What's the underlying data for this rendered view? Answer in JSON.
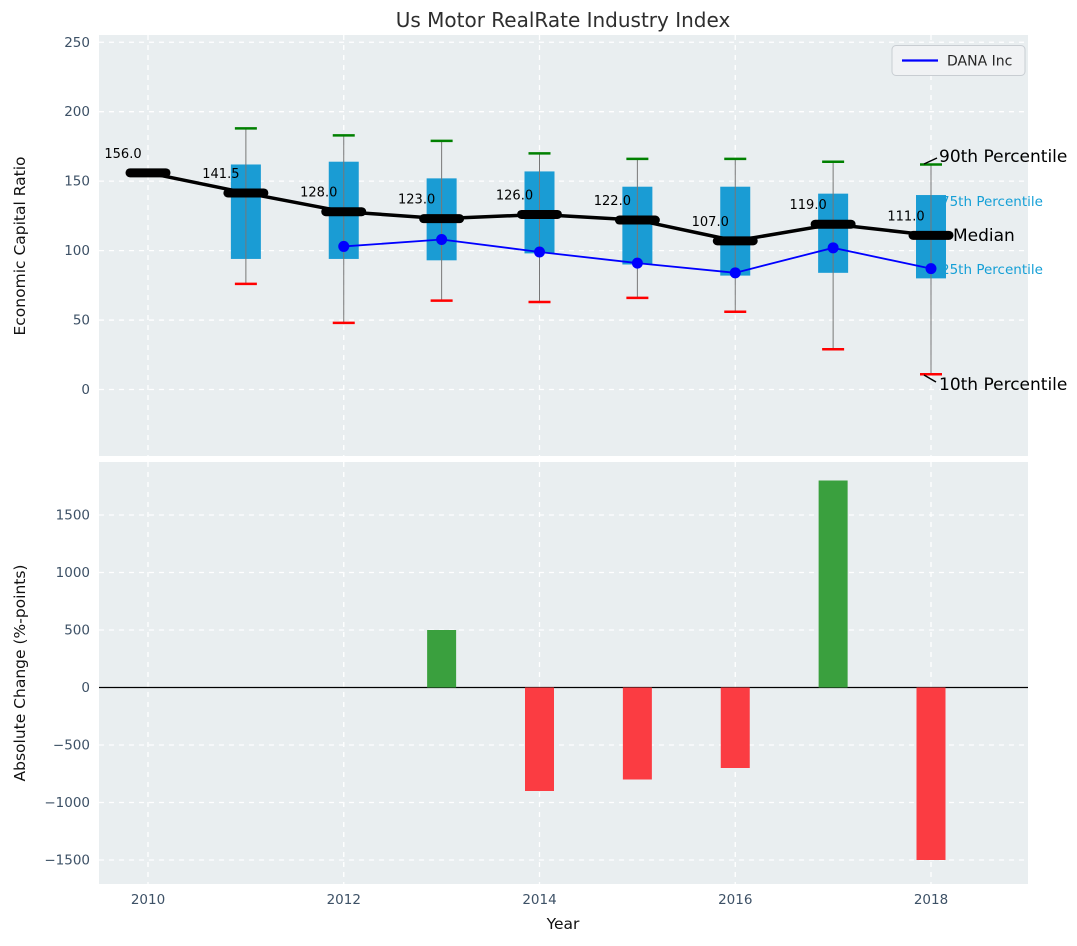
{
  "title": "Us Motor RealRate Industry Index",
  "legend": {
    "label": "DANA Inc"
  },
  "axes": {
    "top_ylabel": "Economic Capital Ratio",
    "bottom_ylabel": "Absolute Change (%-points)",
    "xlabel": "Year"
  },
  "annotations": {
    "p90": "90th Percentile",
    "p75": "75th Percentile",
    "median": "Median",
    "p25": "25th Percentile",
    "p10": "10th Percentile"
  },
  "colors": {
    "box": "#1a9cd4",
    "whisker": "#777777",
    "cap_high": "#008000",
    "cap_low": "#ff0000",
    "median": "#000000",
    "dana_line": "#0000ff",
    "bar_positive": "#3aa03e",
    "bar_negative": "#fb3c42",
    "plot_bg": "#e9eef0",
    "grid": "#ffffff",
    "tick_label": "#3d5166",
    "annotation_cyan": "#149fd6",
    "annotation_black": "#000000",
    "zero_line": "#000000"
  },
  "chart_data": [
    {
      "type": "boxplot-percentile-line",
      "title": "Us Motor RealRate Industry Index",
      "ylabel": "Economic Capital Ratio",
      "grid": true,
      "legend_position": "upper right",
      "x": [
        2010,
        2011,
        2012,
        2013,
        2014,
        2015,
        2016,
        2017,
        2018
      ],
      "yticks": [
        0,
        50,
        100,
        150,
        200,
        250
      ],
      "ytick_labels": [
        "0",
        "50",
        "100",
        "150",
        "200",
        "250"
      ],
      "ylim": [
        -47,
        255
      ],
      "median": [
        156,
        141.5,
        128,
        123,
        126,
        122,
        107,
        119,
        111
      ],
      "median_labels": [
        "156.0",
        "141.5",
        "128.0",
        "123.0",
        "126.0",
        "122.0",
        "107.0",
        "119.0",
        "111.0"
      ],
      "p90": [
        null,
        188,
        183,
        179,
        170,
        166,
        166,
        164,
        162
      ],
      "p75": [
        null,
        162,
        164,
        152,
        157,
        146,
        146,
        141,
        140
      ],
      "p25": [
        null,
        94,
        94,
        93,
        98,
        90,
        82,
        84,
        80
      ],
      "p10": [
        null,
        76,
        48,
        64,
        63,
        66,
        56,
        29,
        11
      ],
      "series": [
        {
          "name": "DANA Inc",
          "x": [
            2012,
            2013,
            2014,
            2015,
            2016,
            2017,
            2018
          ],
          "values": [
            103,
            108,
            99,
            91,
            84,
            102,
            87
          ]
        }
      ]
    },
    {
      "type": "bar",
      "ylabel": "Absolute Change (%-points)",
      "xlabel": "Year",
      "x": [
        2013,
        2014,
        2015,
        2016,
        2017,
        2018
      ],
      "values": [
        500,
        -900,
        -800,
        -700,
        1800,
        -1500
      ],
      "yticks": [
        -1500,
        -1000,
        -500,
        0,
        500,
        1000,
        1500
      ],
      "ytick_labels": [
        "−1500",
        "−1000",
        "−500",
        "0",
        "500",
        "1000",
        "1500"
      ],
      "xticks": [
        2010,
        2012,
        2014,
        2016,
        2018
      ],
      "xtick_labels": [
        "2010",
        "2012",
        "2014",
        "2016",
        "2018"
      ],
      "ylim": [
        -1709,
        1961
      ],
      "grid": true
    }
  ]
}
